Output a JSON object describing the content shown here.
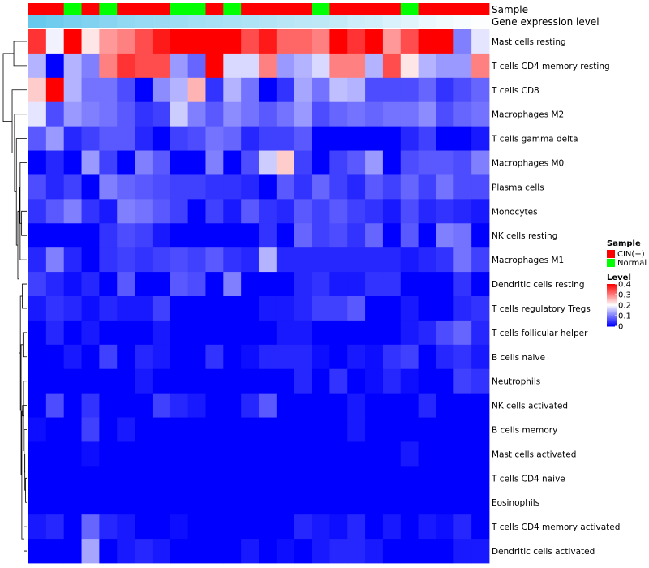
{
  "chart_data": {
    "type": "heatmap",
    "annotation_labels": {
      "sample": "Sample",
      "gene_expression": "Gene expression level"
    },
    "sample_groups": [
      "CIN",
      "CIN",
      "Normal",
      "CIN",
      "Normal",
      "CIN",
      "CIN",
      "CIN",
      "Normal",
      "Normal",
      "CIN",
      "Normal",
      "CIN",
      "CIN",
      "CIN",
      "CIN",
      "Normal",
      "CIN",
      "CIN",
      "CIN",
      "CIN",
      "Normal",
      "CIN",
      "CIN",
      "CIN",
      "CIN"
    ],
    "gene_expression_levels": [
      0.9,
      0.85,
      0.8,
      0.75,
      0.7,
      0.65,
      0.62,
      0.6,
      0.58,
      0.55,
      0.52,
      0.5,
      0.48,
      0.45,
      0.42,
      0.4,
      0.38,
      0.35,
      0.3,
      0.27,
      0.22,
      0.18,
      0.12,
      0.08,
      0.05,
      0.02
    ],
    "rows": [
      "Mast cells resting",
      "T cells CD4 memory resting",
      "T cells CD8",
      "Macrophages M2",
      "T cells gamma delta",
      "Macrophages M0",
      "Plasma cells",
      "Monocytes",
      "NK cells resting",
      "Macrophages M1",
      "Dendritic cells resting",
      "T cells regulatory  Tregs",
      "T cells follicular helper",
      "B cells naive",
      "Neutrophils",
      "NK cells activated",
      "B cells memory",
      "Mast cells activated",
      "T cells CD4 naive",
      "Eosinophils",
      "T cells CD4 memory activated",
      "Dendritic cells activated"
    ],
    "values": [
      [
        0.36,
        0.19,
        0.4,
        0.22,
        0.28,
        0.3,
        0.34,
        0.38,
        0.42,
        0.42,
        0.42,
        0.42,
        0.34,
        0.38,
        0.32,
        0.32,
        0.3,
        0.4,
        0.36,
        0.4,
        0.28,
        0.34,
        0.4,
        0.4,
        0.1,
        0.18
      ],
      [
        0.14,
        0.0,
        0.14,
        0.1,
        0.3,
        0.36,
        0.34,
        0.34,
        0.12,
        0.08,
        0.42,
        0.17,
        0.17,
        0.3,
        0.12,
        0.14,
        0.17,
        0.3,
        0.3,
        0.14,
        0.34,
        0.22,
        0.14,
        0.12,
        0.12,
        0.3
      ],
      [
        0.24,
        0.42,
        0.14,
        0.09,
        0.09,
        0.06,
        0.0,
        0.11,
        0.14,
        0.26,
        0.04,
        0.14,
        0.09,
        0.0,
        0.04,
        0.13,
        0.09,
        0.15,
        0.14,
        0.06,
        0.06,
        0.06,
        0.08,
        0.04,
        0.06,
        0.08
      ],
      [
        0.18,
        0.06,
        0.12,
        0.1,
        0.09,
        0.07,
        0.04,
        0.05,
        0.16,
        0.1,
        0.07,
        0.11,
        0.09,
        0.07,
        0.09,
        0.12,
        0.06,
        0.08,
        0.09,
        0.08,
        0.09,
        0.09,
        0.11,
        0.06,
        0.08,
        0.09
      ],
      [
        0.07,
        0.12,
        0.03,
        0.05,
        0.07,
        0.07,
        0.03,
        0.0,
        0.05,
        0.06,
        0.09,
        0.08,
        0.03,
        0.05,
        0.05,
        0.07,
        0.0,
        0.0,
        0.0,
        0.0,
        0.0,
        0.03,
        0.05,
        0.0,
        0.0,
        0.02
      ],
      [
        0.0,
        0.03,
        0.0,
        0.12,
        0.05,
        0.0,
        0.1,
        0.07,
        0.0,
        0.0,
        0.1,
        0.0,
        0.06,
        0.16,
        0.24,
        0.05,
        0.0,
        0.05,
        0.07,
        0.12,
        0.0,
        0.06,
        0.07,
        0.07,
        0.06,
        0.1
      ],
      [
        0.06,
        0.03,
        0.05,
        0.0,
        0.1,
        0.08,
        0.07,
        0.06,
        0.05,
        0.05,
        0.04,
        0.04,
        0.03,
        0.0,
        0.07,
        0.04,
        0.08,
        0.05,
        0.03,
        0.07,
        0.05,
        0.08,
        0.05,
        0.09,
        0.06,
        0.06
      ],
      [
        0.04,
        0.07,
        0.1,
        0.04,
        0.02,
        0.1,
        0.09,
        0.07,
        0.05,
        0.0,
        0.05,
        0.02,
        0.07,
        0.04,
        0.03,
        0.07,
        0.05,
        0.07,
        0.05,
        0.04,
        0.02,
        0.06,
        0.03,
        0.04,
        0.03,
        0.02
      ],
      [
        0.0,
        0.0,
        0.0,
        0.0,
        0.04,
        0.06,
        0.05,
        0.02,
        0.0,
        0.0,
        0.0,
        0.0,
        0.0,
        0.04,
        0.0,
        0.08,
        0.05,
        0.06,
        0.04,
        0.08,
        0.0,
        0.07,
        0.0,
        0.1,
        0.09,
        0.0
      ],
      [
        0.03,
        0.1,
        0.03,
        0.0,
        0.04,
        0.05,
        0.04,
        0.05,
        0.06,
        0.05,
        0.07,
        0.04,
        0.03,
        0.14,
        0.03,
        0.03,
        0.03,
        0.03,
        0.03,
        0.03,
        0.03,
        0.02,
        0.03,
        0.04,
        0.09,
        0.05
      ],
      [
        0.05,
        0.03,
        0.01,
        0.03,
        0.0,
        0.07,
        0.0,
        0.0,
        0.07,
        0.06,
        0.0,
        0.1,
        0.0,
        0.0,
        0.0,
        0.03,
        0.04,
        0.02,
        0.02,
        0.04,
        0.04,
        0.0,
        0.0,
        0.0,
        0.04,
        0.0
      ],
      [
        0.02,
        0.04,
        0.03,
        0.01,
        0.03,
        0.02,
        0.02,
        0.05,
        0.0,
        0.0,
        0.0,
        0.0,
        0.0,
        0.02,
        0.02,
        0.03,
        0.05,
        0.05,
        0.07,
        0.0,
        0.0,
        0.02,
        0.0,
        0.0,
        0.03,
        0.04
      ],
      [
        0.0,
        0.03,
        0.0,
        0.02,
        0.0,
        0.0,
        0.0,
        0.02,
        0.0,
        0.0,
        0.0,
        0.0,
        0.0,
        0.0,
        0.02,
        0.02,
        0.0,
        0.0,
        0.0,
        0.0,
        0.0,
        0.02,
        0.03,
        0.06,
        0.08,
        0.03
      ],
      [
        0.0,
        0.0,
        0.02,
        0.0,
        0.05,
        0.0,
        0.03,
        0.02,
        0.0,
        0.0,
        0.04,
        0.0,
        0.01,
        0.03,
        0.03,
        0.03,
        0.01,
        0.0,
        0.02,
        0.01,
        0.04,
        0.05,
        0.0,
        0.03,
        0.04,
        0.02
      ],
      [
        0.0,
        0.0,
        0.0,
        0.0,
        0.0,
        0.0,
        0.02,
        0.0,
        0.0,
        0.0,
        0.0,
        0.0,
        0.0,
        0.0,
        0.0,
        0.03,
        0.0,
        0.04,
        0.0,
        0.01,
        0.03,
        0.01,
        0.0,
        0.0,
        0.05,
        0.04
      ],
      [
        0.0,
        0.06,
        0.0,
        0.04,
        0.0,
        0.0,
        0.0,
        0.05,
        0.03,
        0.02,
        0.0,
        0.0,
        0.03,
        0.07,
        0.0,
        0.0,
        0.0,
        0.0,
        0.02,
        0.0,
        0.0,
        0.0,
        0.03,
        0.0,
        0.0,
        0.0
      ],
      [
        0.01,
        0.0,
        0.0,
        0.05,
        0.0,
        0.02,
        0.0,
        0.0,
        0.0,
        0.0,
        0.0,
        0.0,
        0.0,
        0.0,
        0.0,
        0.0,
        0.0,
        0.0,
        0.02,
        0.0,
        0.0,
        0.0,
        0.0,
        0.0,
        0.0,
        0.0
      ],
      [
        0.0,
        0.0,
        0.0,
        0.01,
        0.0,
        0.0,
        0.0,
        0.0,
        0.0,
        0.0,
        0.0,
        0.0,
        0.0,
        0.0,
        0.0,
        0.0,
        0.0,
        0.0,
        0.0,
        0.0,
        0.0,
        0.02,
        0.0,
        0.0,
        0.0,
        0.0
      ],
      [
        0.0,
        0.0,
        0.0,
        0.0,
        0.0,
        0.0,
        0.0,
        0.0,
        0.0,
        0.0,
        0.0,
        0.0,
        0.0,
        0.0,
        0.0,
        0.0,
        0.0,
        0.0,
        0.0,
        0.0,
        0.0,
        0.0,
        0.0,
        0.0,
        0.0,
        0.0
      ],
      [
        0.0,
        0.0,
        0.0,
        0.0,
        0.0,
        0.0,
        0.0,
        0.0,
        0.0,
        0.0,
        0.0,
        0.0,
        0.0,
        0.0,
        0.0,
        0.0,
        0.0,
        0.0,
        0.0,
        0.0,
        0.0,
        0.0,
        0.0,
        0.0,
        0.0,
        0.0
      ],
      [
        0.02,
        0.03,
        0.0,
        0.08,
        0.03,
        0.02,
        0.0,
        0.0,
        0.01,
        0.0,
        0.0,
        0.0,
        0.0,
        0.0,
        0.0,
        0.03,
        0.02,
        0.01,
        0.03,
        0.0,
        0.02,
        0.0,
        0.02,
        0.01,
        0.03,
        0.0
      ],
      [
        0.0,
        0.0,
        0.0,
        0.13,
        0.0,
        0.02,
        0.03,
        0.02,
        0.0,
        0.0,
        0.0,
        0.0,
        0.02,
        0.0,
        0.01,
        0.0,
        0.02,
        0.03,
        0.03,
        0.02,
        0.0,
        0.0,
        0.0,
        0.0,
        0.02,
        0.02
      ]
    ],
    "color_scale": {
      "min": 0,
      "max": 0.4,
      "low_color": "#0000FF",
      "mid_color": "#FFFFFF",
      "high_color": "#FF0000"
    },
    "sample_colors": {
      "CIN": "#FF0000",
      "Normal": "#00FF00"
    },
    "expression_colors": {
      "low": "#FFFFFF",
      "high": "#56C3EB"
    },
    "legend": {
      "sample_title": "Sample",
      "sample_items": [
        {
          "key": "CIN",
          "label": "CIN(+)"
        },
        {
          "key": "Normal",
          "label": "Normal"
        }
      ],
      "level_title": "Level",
      "level_ticks": [
        {
          "value": 0.4,
          "label": "0.4"
        },
        {
          "value": 0.3,
          "label": "0.3"
        },
        {
          "value": 0.2,
          "label": "0.2"
        },
        {
          "value": 0.1,
          "label": "0.1"
        },
        {
          "value": 0,
          "label": "0"
        }
      ]
    },
    "dendrogram_merges": [
      [
        18,
        19,
        0.05
      ],
      [
        17,
        -1,
        0.08
      ],
      [
        16,
        -2,
        0.11
      ],
      [
        14,
        -3,
        0.14
      ],
      [
        15,
        -4,
        0.18
      ],
      [
        20,
        21,
        0.12
      ],
      [
        -6,
        -5,
        0.21
      ],
      [
        12,
        13,
        0.16
      ],
      [
        -8,
        -7,
        0.24
      ],
      [
        10,
        11,
        0.19
      ],
      [
        -10,
        -9,
        0.27
      ],
      [
        7,
        8,
        0.22
      ],
      [
        6,
        -12,
        0.3
      ],
      [
        -13,
        -11,
        0.33
      ],
      [
        5,
        9,
        0.28
      ],
      [
        -15,
        -14,
        0.38
      ],
      [
        4,
        -16,
        0.44
      ],
      [
        3,
        -17,
        0.52
      ],
      [
        2,
        -18,
        0.62
      ],
      [
        0,
        1,
        0.55
      ],
      [
        -20,
        -19,
        1.0
      ]
    ]
  }
}
